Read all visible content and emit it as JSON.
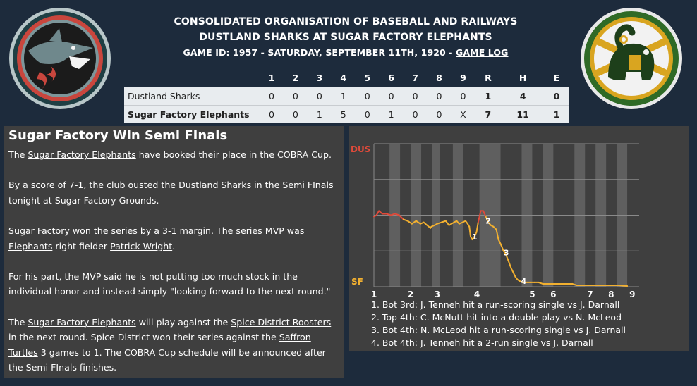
{
  "header": {
    "line1": "CONSOLIDATED ORGANISATION OF BASEBALL AND RAILWAYS",
    "line2": "DUSTLAND SHARKS AT SUGAR FACTORY ELEPHANTS",
    "line3_prefix": "GAME ID: 1957 - SATURDAY, SEPTEMBER 11TH, 1920 - ",
    "game_log_link": "GAME LOG"
  },
  "logos": {
    "away_name": "shark-logo",
    "home_name": "elephant-logo",
    "away_colors": [
      "#1f3f44",
      "#d24a3f",
      "#1b1b1b",
      "#7d969a"
    ],
    "home_colors": [
      "#2f6a26",
      "#d9a520",
      "#f2f2f2",
      "#1d3f1a"
    ]
  },
  "linescore": {
    "headers": [
      "",
      "1",
      "2",
      "3",
      "4",
      "5",
      "6",
      "7",
      "8",
      "9",
      "R",
      "H",
      "E"
    ],
    "rows": [
      {
        "team": "Dustland Sharks",
        "innings": [
          "0",
          "0",
          "0",
          "1",
          "0",
          "0",
          "0",
          "0",
          "0"
        ],
        "R": "1",
        "H": "4",
        "E": "0"
      },
      {
        "team": "Sugar Factory Elephants",
        "innings": [
          "0",
          "0",
          "1",
          "5",
          "0",
          "1",
          "0",
          "0",
          "X"
        ],
        "R": "7",
        "H": "11",
        "E": "1"
      }
    ]
  },
  "news": {
    "title": "Sugar Factory Win Semi FInals",
    "p1": {
      "a": "The ",
      "b": "Sugar Factory Elephants",
      "c": " have booked their place in the COBRA Cup."
    },
    "p2": {
      "a": "By a score of 7-1, the club ousted the ",
      "b": "Dustland Sharks",
      "c": " in the Semi FInals tonight at Sugar Factory Grounds."
    },
    "p3": {
      "a": "Sugar Factory won the series by a 3-1 margin. The series MVP was ",
      "b": "Elephants",
      "c": " right fielder ",
      "d": "Patrick Wright",
      "e": "."
    },
    "p4": "For his part, the MVP said he is not putting too much stock in the individual honor and instead simply \"looking forward to the next round.\"",
    "p5": {
      "a": "The ",
      "b": "Sugar Factory Elephants",
      "c": " will play against the ",
      "d": "Spice District Roosters",
      "e": " in the next round. Spice District won their series against the ",
      "f": "Saffron Turtles",
      "g": " 3 games to 1. The COBRA Cup schedule will be announced after the Semi FInals finishes."
    }
  },
  "chart_data": {
    "type": "line",
    "y_top_label": "DUS",
    "y_bottom_label": "SF",
    "y_top_color": "#e04a3a",
    "y_bottom_color": "#f2b030",
    "ylim": [
      0,
      100
    ],
    "xlim": [
      0,
      60
    ],
    "x_tick_labels": [
      {
        "label": "1",
        "x": 0
      },
      {
        "label": "2",
        "x": 8.7
      },
      {
        "label": "3",
        "x": 15
      },
      {
        "label": "4",
        "x": 24.4
      },
      {
        "label": "5",
        "x": 37.5
      },
      {
        "label": "6",
        "x": 42.5
      },
      {
        "label": "7",
        "x": 51.2
      },
      {
        "label": "8",
        "x": 56.2
      },
      {
        "label": "9",
        "x": 61.2
      }
    ],
    "shaded_half_innings": [
      [
        3.7,
        6.2
      ],
      [
        8.7,
        11.2
      ],
      [
        13.7,
        15.6
      ],
      [
        18.7,
        21.2
      ],
      [
        25,
        30
      ],
      [
        35,
        37.5
      ],
      [
        40,
        42.5
      ],
      [
        47.5,
        50
      ],
      [
        52.5,
        55
      ],
      [
        57.5,
        60
      ]
    ],
    "series": [
      {
        "points": [
          [
            0,
            49
          ],
          [
            0.6,
            50
          ],
          [
            1.2,
            53
          ],
          [
            2,
            51
          ],
          [
            3,
            51
          ],
          [
            4,
            50
          ],
          [
            5,
            51
          ],
          [
            6,
            50
          ],
          [
            7,
            47
          ],
          [
            8,
            46
          ],
          [
            9,
            44
          ],
          [
            10,
            46
          ],
          [
            11,
            44
          ],
          [
            11.8,
            45
          ],
          [
            12.6,
            43
          ],
          [
            13.4,
            41
          ],
          [
            13.6,
            42
          ],
          [
            14.4,
            43
          ],
          [
            15,
            44
          ],
          [
            16,
            45
          ],
          [
            17,
            46
          ],
          [
            17.8,
            43
          ],
          [
            18.4,
            44
          ],
          [
            19,
            45
          ],
          [
            19.6,
            46
          ],
          [
            20.2,
            44
          ],
          [
            21,
            45
          ],
          [
            21.7,
            46
          ],
          [
            22.2,
            44
          ],
          [
            22.6,
            42
          ],
          [
            22.9,
            35
          ],
          [
            23.3,
            33
          ],
          [
            23.8,
            35
          ],
          [
            24.3,
            38
          ],
          [
            24.7,
            45
          ],
          [
            25.3,
            53
          ],
          [
            25.9,
            53
          ],
          [
            26.5,
            49
          ],
          [
            27.1,
            45
          ],
          [
            27.7,
            43
          ],
          [
            28.3,
            42
          ],
          [
            29,
            40
          ],
          [
            29.5,
            33
          ],
          [
            30,
            30
          ],
          [
            30.3,
            28
          ],
          [
            30.7,
            25
          ],
          [
            31.2,
            23
          ],
          [
            31.6,
            20
          ],
          [
            32,
            17
          ],
          [
            32.5,
            13
          ],
          [
            33,
            10
          ],
          [
            33.5,
            7
          ],
          [
            34,
            5
          ],
          [
            34.5,
            4
          ],
          [
            35.2,
            3
          ],
          [
            36,
            3
          ],
          [
            37,
            3
          ],
          [
            38,
            3
          ],
          [
            39,
            3
          ],
          [
            40,
            2
          ],
          [
            41,
            2
          ],
          [
            42,
            2
          ],
          [
            43,
            2
          ],
          [
            44,
            2
          ],
          [
            45,
            2
          ],
          [
            46,
            2
          ],
          [
            47,
            2
          ],
          [
            48,
            1
          ],
          [
            50,
            1
          ],
          [
            52,
            1
          ],
          [
            54,
            1
          ],
          [
            56,
            1
          ],
          [
            58,
            1
          ],
          [
            60,
            0.5
          ]
        ]
      }
    ],
    "event_markers": [
      {
        "label": "1",
        "x": 22.9,
        "y": 35
      },
      {
        "label": "2",
        "x": 26.1,
        "y": 46
      },
      {
        "label": "3",
        "x": 30.4,
        "y": 24
      },
      {
        "label": "4",
        "x": 34.5,
        "y": 4
      }
    ],
    "notes": [
      "1. Bot 3rd: J. Tenneh hit a run-scoring single vs J. Darnall",
      "2. Top 4th: C. McNutt hit into a double play vs N. McLeod",
      "3. Bot 4th: N. McLeod hit a run-scoring single vs J. Darnall",
      "4. Bot 4th: J. Tenneh hit a 2-run single vs J. Darnall"
    ]
  }
}
